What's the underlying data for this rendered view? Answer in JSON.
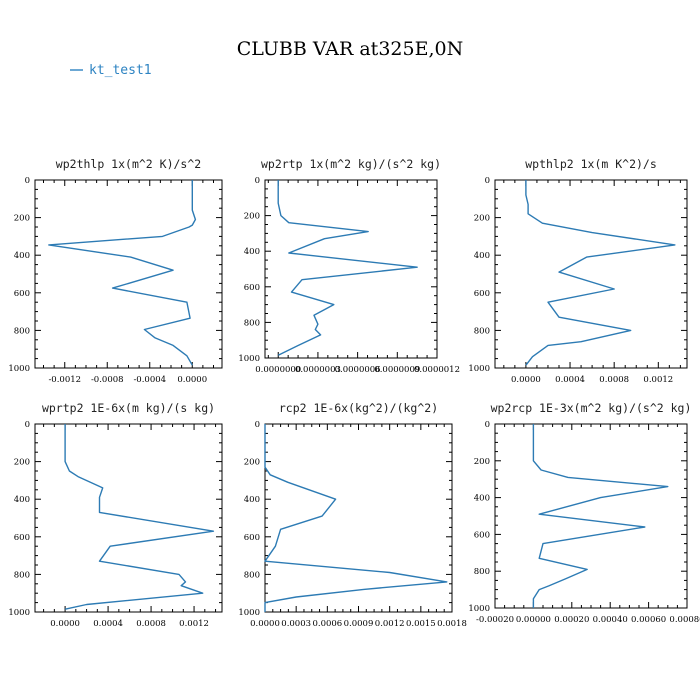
{
  "title": "CLUBB VAR at325E,0N",
  "legend": [
    {
      "label": "kt_test1",
      "color": "#2d83c2"
    }
  ],
  "chart_data": [
    {
      "type": "line",
      "title": "wp2thlp   1x(m^2 K)/s^2",
      "xlim": [
        -0.00148,
        0.00028
      ],
      "ylim": [
        0,
        1000
      ],
      "xticks": [
        -0.0012,
        -0.0008,
        -0.0004,
        0.0
      ],
      "xtick_labels": [
        "-0.0012",
        "-0.0008",
        "-0.0004",
        "0.0000"
      ],
      "yticks": [
        0,
        200,
        400,
        600,
        800,
        1000
      ],
      "ytick_labels": [
        "0",
        "200",
        "400",
        "600",
        "800",
        "1000"
      ],
      "series": [
        {
          "color": "#2d7bb4",
          "x": [
            0.0,
            0.0,
            0.0,
            3e-05,
            0.0,
            -3e-05,
            -0.00028,
            -0.00135,
            -0.00058,
            -0.00018,
            -0.00075,
            -5e-05,
            -2e-05,
            -0.00045,
            -0.00035,
            -0.00018,
            -5e-05,
            0.0
          ],
          "y": [
            0,
            80,
            160,
            210,
            240,
            250,
            300,
            345,
            410,
            480,
            575,
            650,
            735,
            795,
            840,
            880,
            935,
            985
          ]
        }
      ]
    },
    {
      "type": "line",
      "title": "wp2rtp   1x(m^2 kg)/(s^2 kg)",
      "xlim": [
        -1e-07,
        1.2e-06
      ],
      "ylim": [
        0,
        1000
      ],
      "xticks": [
        0.0,
        3e-07,
        6e-07,
        9e-07,
        1.2e-06
      ],
      "xtick_labels": [
        "0.0000000",
        "0.0000003",
        "0.0000006",
        "0.0000009",
        "0.0000012"
      ],
      "yticks": [
        0,
        200,
        400,
        600,
        800,
        1000
      ],
      "ytick_labels": [
        "0",
        "200",
        "400",
        "600",
        "800",
        "1000"
      ],
      "series": [
        {
          "color": "#2d7bb4",
          "x": [
            0.0,
            0.0,
            0.0,
            2e-08,
            8e-08,
            6.8e-07,
            3.5e-07,
            8e-08,
            1.05e-06,
            1.8e-07,
            1e-07,
            4.2e-07,
            2.7e-07,
            3e-07,
            2.8e-07,
            3.2e-07,
            1.5e-07,
            0.0
          ],
          "y": [
            0,
            60,
            130,
            200,
            240,
            290,
            330,
            410,
            490,
            560,
            630,
            700,
            760,
            810,
            840,
            870,
            930,
            985
          ]
        }
      ]
    },
    {
      "type": "line",
      "title": "wpthlp2   1x(m K^2)/s",
      "xlim": [
        -0.00028,
        0.00146
      ],
      "ylim": [
        0,
        1000
      ],
      "xticks": [
        0.0,
        0.0004,
        0.0008,
        0.0012
      ],
      "xtick_labels": [
        "0.0000",
        "0.0004",
        "0.0008",
        "0.0012"
      ],
      "yticks": [
        0,
        200,
        400,
        600,
        800,
        1000
      ],
      "ytick_labels": [
        "0",
        "200",
        "400",
        "600",
        "800",
        "1000"
      ],
      "series": [
        {
          "color": "#2d7bb4",
          "x": [
            0.0,
            0.0,
            2e-05,
            2e-05,
            0.00015,
            0.0006,
            0.00135,
            0.00055,
            0.0003,
            0.0008,
            0.0002,
            0.0003,
            0.00095,
            0.0005,
            0.0002,
            6e-05,
            0.0
          ],
          "y": [
            0,
            80,
            130,
            180,
            230,
            280,
            345,
            410,
            490,
            580,
            650,
            730,
            800,
            860,
            880,
            940,
            985
          ]
        }
      ]
    },
    {
      "type": "line",
      "title": "wprtp2   1E-6x(m kg)/(s kg)",
      "xlim": [
        -0.00028,
        0.00146
      ],
      "ylim": [
        0,
        1000
      ],
      "xticks": [
        0.0,
        0.0004,
        0.0008,
        0.0012
      ],
      "xtick_labels": [
        "0.0000",
        "0.0004",
        "0.0008",
        "0.0012"
      ],
      "yticks": [
        0,
        200,
        400,
        600,
        800,
        1000
      ],
      "ytick_labels": [
        "0",
        "200",
        "400",
        "600",
        "800",
        "1000"
      ],
      "series": [
        {
          "color": "#2d7bb4",
          "x": [
            0.0,
            0.0,
            0.0,
            4e-05,
            0.00012,
            0.00035,
            0.00032,
            0.00032,
            0.00138,
            0.00042,
            0.00032,
            0.00106,
            0.00112,
            0.00108,
            0.00128,
            0.0002,
            0.0
          ],
          "y": [
            0,
            80,
            200,
            250,
            280,
            340,
            390,
            470,
            570,
            650,
            730,
            800,
            840,
            860,
            900,
            960,
            985
          ]
        }
      ]
    },
    {
      "type": "line",
      "title": "rcp2   1E-6x(kg^2)/(kg^2)",
      "xlim": [
        0.0,
        0.0018
      ],
      "ylim": [
        0,
        1000
      ],
      "xticks": [
        0.0,
        0.0003,
        0.0006,
        0.0009,
        0.0012,
        0.0015,
        0.0018
      ],
      "xtick_labels": [
        "0.0000",
        "0.0003",
        "0.0006",
        "0.0009",
        "0.0012",
        "0.0015",
        "0.0018"
      ],
      "yticks": [
        0,
        200,
        400,
        600,
        800,
        1000
      ],
      "ytick_labels": [
        "0",
        "200",
        "400",
        "600",
        "800",
        "1000"
      ],
      "series": [
        {
          "color": "#2d7bb4",
          "x": [
            0.0,
            0.0,
            0.0,
            5e-05,
            0.00022,
            0.00068,
            0.00055,
            0.00015,
            0.0001,
            0.0,
            0.0012,
            0.00175,
            0.00095,
            0.0003,
            0.0,
            0.0
          ],
          "y": [
            0,
            100,
            230,
            270,
            310,
            400,
            490,
            560,
            650,
            730,
            790,
            840,
            880,
            920,
            950,
            1000
          ]
        }
      ]
    },
    {
      "type": "line",
      "title": "wp2rcp   1E-3x(m^2 kg)/(s^2 kg)",
      "xlim": [
        -0.0002,
        0.0008
      ],
      "ylim": [
        0,
        1000
      ],
      "xticks": [
        -0.0002,
        0.0,
        0.0002,
        0.0004,
        0.0006,
        0.0008
      ],
      "xtick_labels": [
        "-0.00020",
        "0.00000",
        "0.00020",
        "0.00040",
        "0.00060",
        "0.00080"
      ],
      "yticks": [
        0,
        200,
        400,
        600,
        800,
        1000
      ],
      "ytick_labels": [
        "0",
        "200",
        "400",
        "600",
        "800",
        "1000"
      ],
      "series": [
        {
          "color": "#2d7bb4",
          "x": [
            0.0,
            0.0,
            0.0,
            4e-05,
            0.00018,
            0.0007,
            0.00035,
            3e-05,
            0.00058,
            5e-05,
            3e-05,
            0.00028,
            0.00017,
            8e-05,
            3e-05,
            0.0,
            0.0
          ],
          "y": [
            0,
            100,
            200,
            250,
            290,
            340,
            400,
            490,
            560,
            650,
            730,
            790,
            840,
            880,
            900,
            950,
            1000
          ]
        }
      ]
    }
  ]
}
